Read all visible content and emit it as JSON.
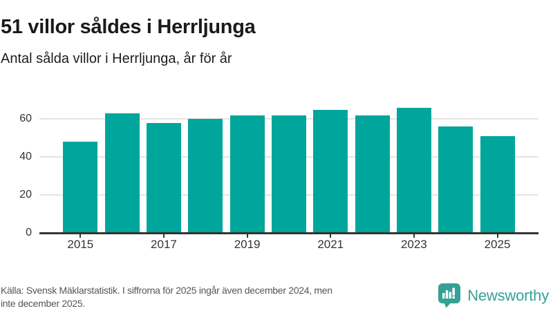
{
  "header": {
    "title": "51 villor såldes i Herrljunga",
    "subtitle": "Antal sålda villor i Herrljunga, år för år"
  },
  "chart_data": {
    "type": "bar",
    "title": "51 villor såldes i Herrljunga",
    "subtitle": "Antal sålda villor i Herrljunga, år för år",
    "categories": [
      "2015",
      "2016",
      "2017",
      "2018",
      "2019",
      "2020",
      "2021",
      "2022",
      "2023",
      "2024",
      "2025"
    ],
    "values": [
      48,
      63,
      58,
      60,
      62,
      62,
      65,
      62,
      66,
      56,
      51
    ],
    "x_tick_labels": [
      "2015",
      "2017",
      "2019",
      "2021",
      "2023",
      "2025"
    ],
    "y_ticks": [
      0,
      20,
      40,
      60
    ],
    "ylim": [
      0,
      70
    ],
    "xlabel": "",
    "ylabel": "",
    "grid": "horizontal",
    "legend": "none",
    "bar_color": "#00a59b",
    "gridline_color": "#e4e4e4",
    "axis_color": "#333333",
    "tick_label_color": "#333333"
  },
  "footer": {
    "source_line1": "Källa: Svensk Mäklarstatistik. I siffrorna för 2025 ingår även december 2024, men",
    "source_line2": "inte december 2025.",
    "brand": "Newsworthy",
    "brand_color": "#35a195"
  }
}
